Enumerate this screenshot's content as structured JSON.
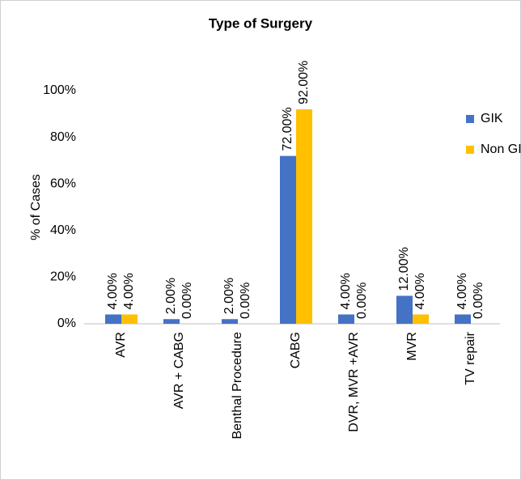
{
  "chart_data": {
    "type": "bar",
    "title": "Type of Surgery",
    "y_label": "% of Cases",
    "categories": [
      "AVR",
      "AVR + CABG",
      "Benthal Procedure",
      "CABG",
      "DVR, MVR +AVR",
      "MVR",
      "TV repair"
    ],
    "series": [
      {
        "name": "GIK",
        "color": "#4472c4",
        "values": [
          4,
          2,
          2,
          72,
          4,
          12,
          4
        ],
        "value_labels": [
          "4.00%",
          "2.00%",
          "2.00%",
          "72.00%",
          "4.00%",
          "12.00%",
          "4.00%"
        ]
      },
      {
        "name": "Non GIK",
        "color": "#ffc000",
        "values": [
          4,
          0,
          0,
          92,
          0,
          4,
          0
        ],
        "value_labels": [
          "4.00%",
          "0.00%",
          "0.00%",
          "92.00%",
          "0.00%",
          "4.00%",
          "0.00%"
        ]
      }
    ],
    "ylim": [
      0,
      100
    ],
    "yticks": [
      {
        "value": 0,
        "label": "0%"
      },
      {
        "value": 20,
        "label": "20%"
      },
      {
        "value": 40,
        "label": "40%"
      },
      {
        "value": 60,
        "label": "60%"
      },
      {
        "value": 80,
        "label": "80%"
      },
      {
        "value": 100,
        "label": "100%"
      }
    ],
    "legend": "top-right",
    "grid": false
  }
}
